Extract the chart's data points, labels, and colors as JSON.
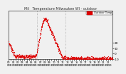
{
  "title": "Mil   Temperature Milwaukee WI - outdoor",
  "bg_color": "#f0f0f0",
  "plot_bg_color": "#f0f0f0",
  "line_color": "#dd0000",
  "marker_size": 0.8,
  "ylim": [
    -10,
    80
  ],
  "ytick_values": [
    20,
    10,
    0,
    -10
  ],
  "ytick_labels": [
    "20",
    "10",
    "0",
    "-10"
  ],
  "legend_label": "Outdoor Temp",
  "legend_color": "#dd0000",
  "vline_x": [
    0.274,
    0.548
  ],
  "vline_color": "#888888",
  "tick_fontsize": 3.0,
  "title_fontsize": 3.5,
  "temps": [
    20,
    20,
    19,
    19,
    19,
    18,
    18,
    18,
    17,
    17,
    17,
    16,
    16,
    16,
    15,
    15,
    14,
    14,
    13,
    13,
    12,
    12,
    11,
    11,
    10,
    10,
    9,
    9,
    8,
    8,
    7,
    7,
    6,
    6,
    5,
    5,
    4,
    4,
    3,
    3,
    2,
    2,
    1,
    1,
    0,
    0,
    -1,
    -1,
    -2,
    -2,
    -2,
    -3,
    -3,
    -3,
    -4,
    -4,
    -4,
    -4,
    -5,
    -5,
    -5,
    -5,
    -5,
    -5,
    -5,
    -5,
    -5,
    -5,
    -5,
    -5,
    -5,
    -5,
    -5,
    -5,
    -5,
    -5,
    -5,
    -5,
    -5,
    -5,
    -5,
    -5,
    -5,
    -5,
    -5,
    -5,
    -5,
    -5,
    -5,
    -5,
    -5,
    -5,
    -5,
    -5,
    -5,
    -5,
    -5,
    -5,
    -5,
    -5,
    -5,
    -5,
    -5,
    -5,
    -5,
    -5,
    -5,
    -5,
    -5,
    -5,
    -5,
    -5,
    -5,
    -5,
    -5,
    -5,
    -5,
    -5,
    -5,
    -5,
    -5,
    -5,
    -5,
    -5,
    -5,
    -5,
    -5,
    -5,
    -5,
    -5,
    -5,
    -5,
    -5,
    -5,
    -5,
    -5,
    -5,
    -5,
    -5,
    -5,
    -5,
    -5,
    -5,
    -5,
    -5,
    -5,
    -5,
    -5,
    -5,
    -5,
    -5,
    -5,
    -5,
    -5,
    -5,
    -5,
    -5,
    -5,
    -5,
    -5,
    -5,
    -5,
    -5,
    -5,
    -5,
    -5,
    -5,
    -5,
    -5,
    -5,
    -5,
    -5,
    -5,
    -5,
    -5,
    -5,
    -5,
    -5,
    -5,
    -5,
    -5,
    -5,
    -5,
    -5,
    -5,
    -5,
    -5,
    -5,
    -5,
    -5,
    -5,
    -5,
    -5,
    -5,
    -5,
    -5,
    -5,
    -5,
    -5,
    -5,
    -5,
    -5,
    -5,
    -5,
    -5,
    -5,
    -5,
    -5,
    -5,
    -5,
    -5,
    -5,
    -5,
    -5,
    -5,
    -5,
    -5,
    -5,
    -5,
    -5,
    -5,
    -5,
    -5,
    -5,
    -5,
    -5,
    -5,
    -5,
    -5,
    -5,
    -5,
    -5,
    -5,
    -5,
    -5,
    -5,
    -5,
    -5,
    -5,
    -5,
    -5,
    -5,
    -5,
    -4,
    -4,
    -3,
    -3,
    -2,
    -2,
    -1,
    -1,
    0,
    0,
    1,
    2,
    3,
    4,
    5,
    6,
    7,
    8,
    9,
    10,
    11,
    13,
    14,
    16,
    17,
    18,
    19,
    20,
    21,
    22,
    23,
    24,
    25,
    27,
    28,
    29,
    30,
    31,
    32,
    33,
    35,
    36,
    37,
    38,
    39,
    40,
    41,
    42,
    43,
    44,
    45,
    46,
    47,
    48,
    49,
    50,
    51,
    52,
    53,
    54,
    55,
    56,
    57,
    57,
    58,
    58,
    59,
    59,
    60,
    60,
    61,
    61,
    62,
    62,
    63,
    63,
    63,
    64,
    64,
    64,
    65,
    65,
    65,
    65,
    65,
    65,
    65,
    65,
    65,
    65,
    65,
    65,
    65,
    65,
    64,
    64,
    64,
    64,
    63,
    63,
    62,
    62,
    61,
    61,
    61,
    60,
    60,
    59,
    59,
    58,
    58,
    57,
    57,
    56,
    56,
    55,
    55,
    54,
    54,
    53,
    52,
    52,
    51,
    50,
    50,
    49,
    48,
    47,
    47,
    46,
    46,
    46,
    46,
    45,
    45,
    45,
    44,
    44,
    44,
    43,
    43,
    42,
    42,
    42,
    41,
    41,
    40,
    40,
    39,
    39,
    38,
    38,
    37,
    37,
    36,
    36,
    35,
    35,
    34,
    34,
    33,
    33,
    32,
    32,
    31,
    31,
    30,
    30,
    29,
    29,
    28,
    28,
    27,
    27,
    26,
    26,
    25,
    25,
    24,
    24,
    23,
    23,
    22,
    22,
    21,
    21,
    20,
    20,
    19,
    19,
    18,
    18,
    17,
    17,
    16,
    16,
    15,
    15,
    14,
    14,
    13,
    13,
    12,
    12,
    11,
    11,
    10,
    10,
    9,
    9,
    8,
    8,
    7,
    7,
    6,
    6,
    5,
    5,
    4,
    4,
    3,
    3,
    2,
    2,
    1,
    1,
    0,
    0,
    -1,
    -1,
    -2,
    -2,
    -3,
    -3,
    -4,
    -4,
    -5,
    -5,
    -6,
    -6,
    -7,
    -7,
    -8,
    -8,
    -9,
    -9,
    -9,
    -9,
    -9,
    -9,
    -9,
    -9,
    -8,
    -8,
    -8,
    -7,
    -7,
    -7,
    -6,
    -6,
    -6,
    -6,
    -6,
    -6,
    -6,
    -6,
    -6,
    -6,
    -7,
    -7,
    -7,
    -8,
    -8,
    -8,
    -9,
    -9,
    -9,
    -9,
    -9,
    -9,
    -9,
    -9,
    -9,
    -9,
    -9,
    -9,
    -9,
    -9,
    -9,
    -9,
    -9,
    -9,
    -9,
    -9,
    -9,
    -9,
    -9,
    -9,
    -9,
    -9,
    -9,
    -9,
    -9,
    -9,
    -9,
    -9,
    -9,
    -9,
    -9,
    -9,
    -9,
    -9,
    -9,
    -9,
    -9,
    -9,
    -9,
    -9,
    -9,
    -9,
    -9,
    -9,
    -9,
    -9,
    -9,
    -9,
    -9,
    -9,
    -9,
    -9,
    -9,
    -9,
    -9,
    -9,
    -9,
    -9,
    -9,
    -9,
    -9,
    -9,
    -9,
    -9,
    -9,
    -9,
    -9,
    -9,
    -9,
    -9,
    -9,
    -9,
    -9,
    -9,
    -9,
    -9,
    -9,
    -9,
    -9,
    -9,
    -9,
    -9,
    -9,
    -9,
    -9,
    -9,
    -9,
    -9,
    -9,
    -9,
    -9,
    -9,
    -9,
    -9,
    -9,
    -9,
    -9,
    -9,
    -9,
    -9,
    -9,
    -9,
    -9,
    -9,
    -9,
    -9,
    -9,
    -9,
    -9,
    -9,
    -9,
    -9,
    -9,
    -9,
    -9,
    -9,
    -9,
    -9,
    -9,
    -9,
    -9,
    -9,
    -9,
    -9,
    -9,
    -9,
    -9,
    -9,
    -9,
    -9,
    -9,
    -9,
    -9,
    -9,
    -9,
    -9,
    -9,
    -9,
    -9,
    -9,
    -9,
    -9,
    -9,
    -9,
    -9,
    -9,
    -9,
    -9,
    -9,
    -9,
    -9,
    -9,
    -9,
    -9,
    -9,
    -9,
    -9,
    -9,
    -9,
    -9,
    -9,
    -9,
    -9,
    -9,
    -9,
    -9,
    -9,
    -9,
    -9,
    -9,
    -9,
    -9,
    -9,
    -9,
    -9,
    -9,
    -9,
    -9,
    -9,
    -9,
    -9,
    -9,
    -9,
    -9,
    -9,
    -9,
    -9,
    -9,
    -9,
    -9,
    -9,
    -9,
    -9,
    -9,
    -9,
    -9,
    -9,
    -9,
    -9,
    -9,
    -9,
    -9,
    -9,
    -9,
    -9,
    -9,
    -9,
    -9,
    -9,
    -9,
    -9,
    -9,
    -9,
    -9,
    -9,
    -9,
    -9,
    -9,
    -9,
    -9,
    -9,
    -9,
    -9,
    -9,
    -9,
    -9,
    -9,
    -9,
    -9,
    -9,
    -9,
    -9,
    -9,
    -9,
    -9,
    -9,
    -9,
    -9,
    -9,
    -9,
    -9,
    -9,
    -9,
    -9,
    -9,
    -9,
    -9,
    -9,
    -9,
    -9,
    -9,
    -9,
    -9,
    -9,
    -9,
    -9,
    -9,
    -9,
    -9,
    -9,
    -9,
    -9,
    -9,
    -9,
    -9,
    -9,
    -9,
    -9,
    -9,
    -9,
    -9,
    -9,
    -9,
    -9,
    -9,
    -9,
    -9,
    -9,
    -9,
    -9,
    -9,
    -9,
    -9,
    -9,
    -9,
    -9,
    -9,
    -9,
    -9,
    -9,
    -9,
    -9,
    -9,
    -9,
    -9,
    -9,
    -9,
    -9,
    -9,
    -9,
    -9,
    -9,
    -9,
    -9,
    -9,
    -9,
    -9,
    -9,
    -9,
    -9,
    -9,
    -9,
    -9,
    -9,
    -9,
    -9,
    -9,
    -9,
    -9,
    -9,
    -9,
    -9,
    -9,
    -9,
    -9,
    -9,
    -9,
    -9,
    -9,
    -9,
    -9,
    -9,
    -9,
    -9,
    -9,
    -9,
    -9,
    -9,
    -9,
    -9,
    -9,
    -9,
    -9,
    -9,
    -9,
    -9,
    -9,
    -9,
    -9,
    -9,
    -9,
    -9,
    -9,
    -9,
    -9,
    -9,
    -9,
    -9,
    -9,
    -9,
    -9,
    -9,
    -9,
    -9,
    -9,
    -9,
    -9,
    -9,
    -9,
    -9,
    -9,
    -9,
    -9,
    -9,
    -9,
    -9,
    -9,
    -9,
    -9,
    -9,
    -9,
    -9,
    -9,
    -9,
    -9,
    -9,
    -9,
    -9,
    -9,
    -9,
    -9,
    -9,
    -9,
    -9,
    -9,
    -9,
    -9,
    -9,
    -9,
    -9,
    -9,
    -9,
    -9,
    -9,
    -9,
    -9,
    -9,
    -9,
    -9,
    -9,
    -9,
    -9,
    -9,
    -9,
    -9,
    -9,
    -9,
    -9,
    -9
  ]
}
